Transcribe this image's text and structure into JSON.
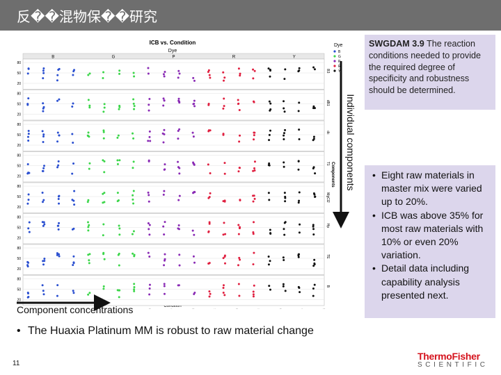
{
  "slide": {
    "title": "反��混物保��研究",
    "page_number": "11",
    "component_concentrations_label": "Component concentrations",
    "individual_components_label": "Individual components",
    "bottom_bullet": "The Huaxia Platinum MM is robust to raw material change",
    "logo": {
      "line1": "ThermoFisher",
      "line2": "SCIENTIFIC"
    }
  },
  "note": {
    "heading": "SWGDAM 3.9",
    "text": "The reaction conditions needed to provide the required degree of specificity and robustness should be determined."
  },
  "bullets": [
    "Eight raw materials in master mix were varied up to 20%.",
    "ICB was above 35% for most raw materials with 10% or even 20% variation.",
    "Detail data including capability analysis presented next."
  ],
  "chart_data": {
    "type": "scatter",
    "title": "ICB vs. Condition",
    "subtitle": "Dye",
    "dye_groups": [
      "B",
      "G",
      "P",
      "R",
      "Y"
    ],
    "colors": {
      "B": "#2a4fd0",
      "G": "#3cd64a",
      "P": "#8a2bb5",
      "R": "#e02040",
      "Y": "#111111"
    },
    "row_labels": [
      "B3",
      "dB1",
      "dc",
      "T1",
      "MgCl2",
      "Hp",
      "TE",
      "B"
    ],
    "right_axis_title": "Components",
    "y_ticks": [
      "80",
      "50",
      "20"
    ],
    "x_axis_label": "Condition",
    "legend_title": "Dye",
    "legend_entries": [
      "B",
      "G",
      "P",
      "R",
      "Y"
    ]
  },
  "colors": {
    "title_bar": "#6e6e6e",
    "panel_bg": "#dcd6ec",
    "arrow": "#111111",
    "logo_red": "#d5131d"
  }
}
